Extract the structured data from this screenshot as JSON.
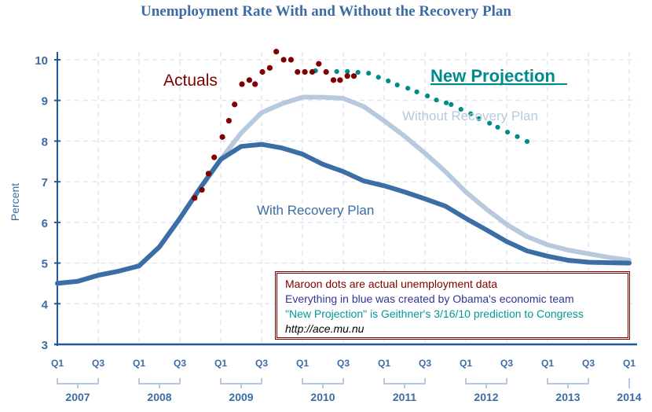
{
  "chart_data": {
    "type": "line",
    "title": "Unemployment Rate With and Without the Recovery Plan",
    "ylabel": "Percent",
    "xlabel": "",
    "ylim": [
      3,
      10
    ],
    "xlim": [
      2007.0,
      2014.0
    ],
    "yticks": [
      "3",
      "4",
      "5",
      "6",
      "7",
      "8",
      "9",
      "10"
    ],
    "xticks": [
      {
        "x": 2007.0,
        "label": "Q1"
      },
      {
        "x": 2007.5,
        "label": "Q3"
      },
      {
        "x": 2008.0,
        "label": "Q1"
      },
      {
        "x": 2008.5,
        "label": "Q3"
      },
      {
        "x": 2009.0,
        "label": "Q1"
      },
      {
        "x": 2009.5,
        "label": "Q3"
      },
      {
        "x": 2010.0,
        "label": "Q1"
      },
      {
        "x": 2010.5,
        "label": "Q3"
      },
      {
        "x": 2011.0,
        "label": "Q1"
      },
      {
        "x": 2011.5,
        "label": "Q3"
      },
      {
        "x": 2012.0,
        "label": "Q1"
      },
      {
        "x": 2012.5,
        "label": "Q3"
      },
      {
        "x": 2013.0,
        "label": "Q1"
      },
      {
        "x": 2013.5,
        "label": "Q3"
      },
      {
        "x": 2014.0,
        "label": "Q1"
      }
    ],
    "years": [
      "2007",
      "2008",
      "2009",
      "2010",
      "2011",
      "2012",
      "2013",
      "2014"
    ],
    "grid": true,
    "series": [
      {
        "name": "Without Recovery Plan",
        "color": "#b8c9dd",
        "style": "line",
        "x": [
          2007.0,
          2007.25,
          2007.5,
          2007.75,
          2008.0,
          2008.25,
          2008.5,
          2008.75,
          2009.0,
          2009.25,
          2009.5,
          2009.75,
          2010.0,
          2010.25,
          2010.5,
          2010.75,
          2011.0,
          2011.25,
          2011.5,
          2011.75,
          2012.0,
          2012.25,
          2012.5,
          2012.75,
          2013.0,
          2013.25,
          2013.5,
          2013.75,
          2014.0
        ],
        "y": [
          4.5,
          4.55,
          4.7,
          4.8,
          4.93,
          5.4,
          6.1,
          6.85,
          7.55,
          8.2,
          8.7,
          8.92,
          9.08,
          9.08,
          9.05,
          8.85,
          8.5,
          8.12,
          7.7,
          7.25,
          6.75,
          6.33,
          5.95,
          5.65,
          5.45,
          5.32,
          5.23,
          5.14,
          5.07
        ]
      },
      {
        "name": "With Recovery Plan",
        "color": "#3a6ea5",
        "style": "line",
        "x": [
          2007.0,
          2007.25,
          2007.5,
          2007.75,
          2008.0,
          2008.25,
          2008.5,
          2008.75,
          2009.0,
          2009.25,
          2009.5,
          2009.75,
          2010.0,
          2010.25,
          2010.5,
          2010.75,
          2011.0,
          2011.25,
          2011.5,
          2011.75,
          2012.0,
          2012.25,
          2012.5,
          2012.75,
          2013.0,
          2013.25,
          2013.5,
          2013.75,
          2014.0
        ],
        "y": [
          4.5,
          4.55,
          4.7,
          4.8,
          4.93,
          5.4,
          6.1,
          6.85,
          7.55,
          7.87,
          7.92,
          7.83,
          7.68,
          7.43,
          7.25,
          7.02,
          6.9,
          6.75,
          6.58,
          6.4,
          6.1,
          5.82,
          5.53,
          5.3,
          5.17,
          5.07,
          5.02,
          5.01,
          5.0
        ]
      },
      {
        "name": "New Projection",
        "color": "#008b8b",
        "style": "dots",
        "x": [
          2010.16,
          2010.42,
          2010.55,
          2010.68,
          2010.81,
          2010.93,
          2011.05,
          2011.16,
          2011.29,
          2011.4,
          2011.53,
          2011.64,
          2011.76,
          2011.82,
          2011.94,
          2012.06,
          2012.16,
          2012.29,
          2012.39,
          2012.51,
          2012.63,
          2012.75
        ],
        "y": [
          9.73,
          9.71,
          9.71,
          9.69,
          9.67,
          9.57,
          9.48,
          9.38,
          9.3,
          9.21,
          9.11,
          9.01,
          8.94,
          8.9,
          8.78,
          8.67,
          8.55,
          8.44,
          8.34,
          8.22,
          8.11,
          7.99
        ]
      },
      {
        "name": "Actuals",
        "color": "#800000",
        "style": "dots",
        "x": [
          2008.68,
          2008.77,
          2008.85,
          2008.92,
          2009.02,
          2009.1,
          2009.17,
          2009.26,
          2009.35,
          2009.42,
          2009.51,
          2009.6,
          2009.68,
          2009.77,
          2009.86,
          2009.94,
          2010.03,
          2010.12,
          2010.2,
          2010.29,
          2010.38,
          2010.46,
          2010.55,
          2010.63
        ],
        "y": [
          6.6,
          6.8,
          7.2,
          7.6,
          8.1,
          8.5,
          8.9,
          9.4,
          9.5,
          9.4,
          9.7,
          9.8,
          10.2,
          10.0,
          10.0,
          9.7,
          9.7,
          9.7,
          9.9,
          9.7,
          9.5,
          9.5,
          9.6,
          9.6
        ]
      }
    ],
    "annotations": {
      "actuals": "Actuals",
      "new_projection": "New Projection",
      "without": "Without Recovery Plan",
      "with": "With Recovery Plan"
    },
    "legend_box": {
      "line1": "Maroon dots are actual unemployment data",
      "line2": "Everything in blue was created by Obama's economic team",
      "line3": "\"New Projection\" is Geithner's 3/16/10 prediction to Congress",
      "line4": "http://ace.mu.nu",
      "colors": {
        "line1": "#800000",
        "line2": "#333399",
        "line3": "#009999",
        "line4": "#000000"
      }
    }
  }
}
